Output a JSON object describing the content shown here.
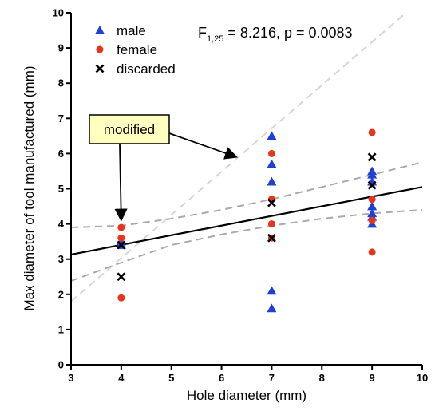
{
  "chart_data": {
    "type": "scatter",
    "xlabel": "Hole diameter (mm)",
    "ylabel": "Max diameter of tool manufactured (mm)",
    "xlim": [
      3,
      10
    ],
    "ylim": [
      0,
      10
    ],
    "x_ticks": [
      3,
      4,
      5,
      6,
      7,
      8,
      9,
      10
    ],
    "y_ticks": [
      0,
      1,
      2,
      3,
      4,
      5,
      6,
      7,
      8,
      9,
      10
    ],
    "grid": false,
    "legend_position": "top-left",
    "statistic": {
      "prefix": "F",
      "subscript": "1,25",
      "suffix": " = 8.216, p = 0.0083"
    },
    "series": [
      {
        "name": "male",
        "marker": "triangle",
        "color": "#1f3fd6",
        "points": [
          [
            4,
            3.4
          ],
          [
            4,
            3.5
          ],
          [
            7,
            6.5
          ],
          [
            7,
            5.7
          ],
          [
            7,
            5.2
          ],
          [
            7,
            2.1
          ],
          [
            7,
            1.6
          ],
          [
            9,
            5.5
          ],
          [
            9,
            5.4
          ],
          [
            9,
            5.2
          ],
          [
            9,
            4.5
          ],
          [
            9,
            4.3
          ],
          [
            9,
            4.2
          ],
          [
            9,
            4.0
          ]
        ]
      },
      {
        "name": "female",
        "marker": "circle",
        "color": "#e8341c",
        "points": [
          [
            4,
            3.9
          ],
          [
            4,
            3.6
          ],
          [
            4,
            1.9
          ],
          [
            7,
            6.0
          ],
          [
            7,
            4.7
          ],
          [
            7,
            4.0
          ],
          [
            7,
            3.6
          ],
          [
            9,
            6.6
          ],
          [
            9,
            4.7
          ],
          [
            9,
            4.1
          ],
          [
            9,
            3.2
          ]
        ]
      },
      {
        "name": "discarded",
        "marker": "x",
        "color": "#000000",
        "points": [
          [
            4,
            3.4
          ],
          [
            4,
            2.5
          ],
          [
            7,
            4.6
          ],
          [
            7,
            3.6
          ],
          [
            9,
            5.9
          ],
          [
            9,
            5.1
          ]
        ]
      }
    ],
    "regression_line": {
      "from": [
        3,
        3.13
      ],
      "to": [
        10,
        5.05
      ],
      "color": "#000000"
    },
    "confidence_band": {
      "color": "#aaaaaa",
      "upper": [
        [
          3,
          3.9
        ],
        [
          4,
          3.95
        ],
        [
          5,
          4.15
        ],
        [
          6,
          4.4
        ],
        [
          7,
          4.7
        ],
        [
          8,
          5.05
        ],
        [
          9,
          5.4
        ],
        [
          10,
          5.75
        ]
      ],
      "lower": [
        [
          3,
          2.38
        ],
        [
          4,
          2.9
        ],
        [
          5,
          3.4
        ],
        [
          6,
          3.7
        ],
        [
          7,
          3.95
        ],
        [
          8,
          4.15
        ],
        [
          9,
          4.3
        ],
        [
          10,
          4.4
        ]
      ]
    },
    "reference_line": {
      "from": [
        3,
        1.8
      ],
      "to": [
        10,
        10.4
      ],
      "color": "#d6d6d6"
    },
    "annotation": {
      "text": "modified",
      "box_fill": "#ffffc0",
      "arrow_targets": [
        [
          4,
          4.1
        ],
        [
          6.3,
          5.9
        ]
      ]
    }
  }
}
